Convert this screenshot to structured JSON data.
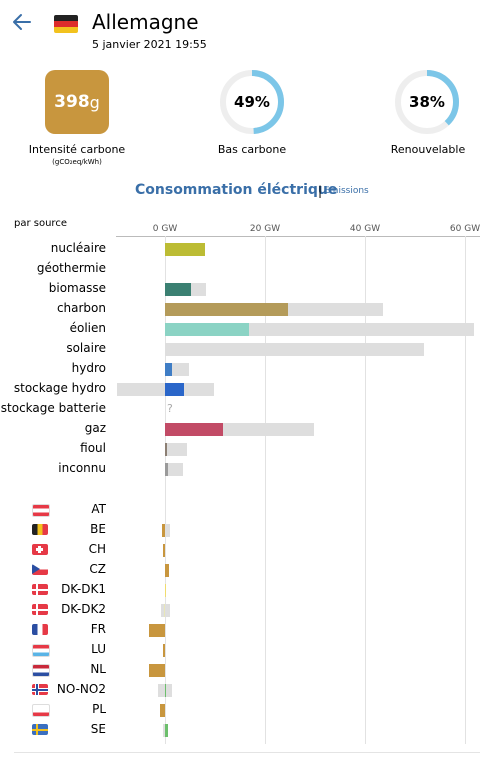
{
  "header": {
    "title": "Allemagne",
    "date": "5 janvier 2021 19:55"
  },
  "kpis": {
    "intensity_value": "398",
    "intensity_unit": "g",
    "intensity_label": "Intensité carbone",
    "intensity_sublabel": "(gCO₂eq/kWh)",
    "intensity_color": "#c8963e",
    "low_carbon_pct_text": "49%",
    "low_carbon_pct": 49,
    "low_carbon_label": "Bas carbone",
    "renewable_pct_text": "38%",
    "renewable_pct": 38,
    "renewable_label": "Renouvelable",
    "ring_color": "#7cc6e8",
    "ring_track_color": "#eeeeee"
  },
  "tabs": {
    "active": "Consommation éléctrique",
    "separator": "|",
    "other": "Emissions"
  },
  "chart_data": {
    "type": "bar",
    "axis_title": "par source",
    "unit": "GW",
    "xlim": [
      -5,
      64
    ],
    "ticks": [
      "0 GW",
      "20 GW",
      "40 GW",
      "60 GW"
    ],
    "tick_values": [
      0,
      20,
      40,
      60
    ],
    "sources": [
      {
        "label": "nucléaire",
        "value": 8,
        "capacity": 8,
        "color": "#bcbc34"
      },
      {
        "label": "géothermie",
        "value": 0,
        "capacity": 0,
        "color": "#cccccc"
      },
      {
        "label": "biomasse",
        "value": 5.2,
        "capacity": 8.2,
        "color": "#3b8072"
      },
      {
        "label": "charbon",
        "value": 24.6,
        "capacity": 43.5,
        "color": "#b49b5a"
      },
      {
        "label": "éolien",
        "value": 16.8,
        "capacity": 61.8,
        "color": "#8bd3c4"
      },
      {
        "label": "solaire",
        "value": 0,
        "capacity": 51.8,
        "color": "#f5c842"
      },
      {
        "label": "hydro",
        "value": 1.4,
        "capacity": 4.8,
        "color": "#3f7dc5"
      },
      {
        "label": "stockage hydro",
        "value": 3.8,
        "capacity": 9.8,
        "capacity_neg": -9.7,
        "color": "#2a66c9"
      },
      {
        "label": "stockage batterie",
        "value": null,
        "capacity": null,
        "color": "#cccccc",
        "unknown": "?"
      },
      {
        "label": "gaz",
        "value": 11.6,
        "capacity": 29.8,
        "color": "#c24b66"
      },
      {
        "label": "fioul",
        "value": 0.4,
        "capacity": 4.4,
        "color": "#8c7f73"
      },
      {
        "label": "inconnu",
        "value": 0.5,
        "capacity": 3.6,
        "color": "#9a9a9a"
      }
    ],
    "exchanges": [
      {
        "label": "AT",
        "value": 0,
        "capacity": 0,
        "color": "#c8963e"
      },
      {
        "label": "BE",
        "value": -0.7,
        "capacity": 0.9,
        "color": "#c8963e"
      },
      {
        "label": "CH",
        "value": -0.5,
        "capacity": 0,
        "color": "#c8963e"
      },
      {
        "label": "CZ",
        "value": 0.8,
        "capacity": 0.8,
        "color": "#c8963e"
      },
      {
        "label": "DK-DK1",
        "value": 0.2,
        "capacity": 0,
        "color": "#f0dc6e"
      },
      {
        "label": "DK-DK2",
        "value": -0.2,
        "capacity": 0.9,
        "capacity_neg": -0.9,
        "color": "#e8e6b8"
      },
      {
        "label": "FR",
        "value": -3.2,
        "capacity": 0,
        "color": "#c8963e"
      },
      {
        "label": "LU",
        "value": -0.4,
        "capacity": 0,
        "color": "#c8963e"
      },
      {
        "label": "NL",
        "value": -3.2,
        "capacity": 0,
        "color": "#c8963e"
      },
      {
        "label": "NO-NO2",
        "value": 0.2,
        "capacity": 1.4,
        "capacity_neg": -1.4,
        "color": "#6cbf6c"
      },
      {
        "label": "PL",
        "value": -1.1,
        "capacity": 0,
        "color": "#c8963e"
      },
      {
        "label": "SE",
        "value": 0.5,
        "capacity": 0.5,
        "capacity_neg": -0.5,
        "color": "#6cbf6c"
      }
    ]
  }
}
